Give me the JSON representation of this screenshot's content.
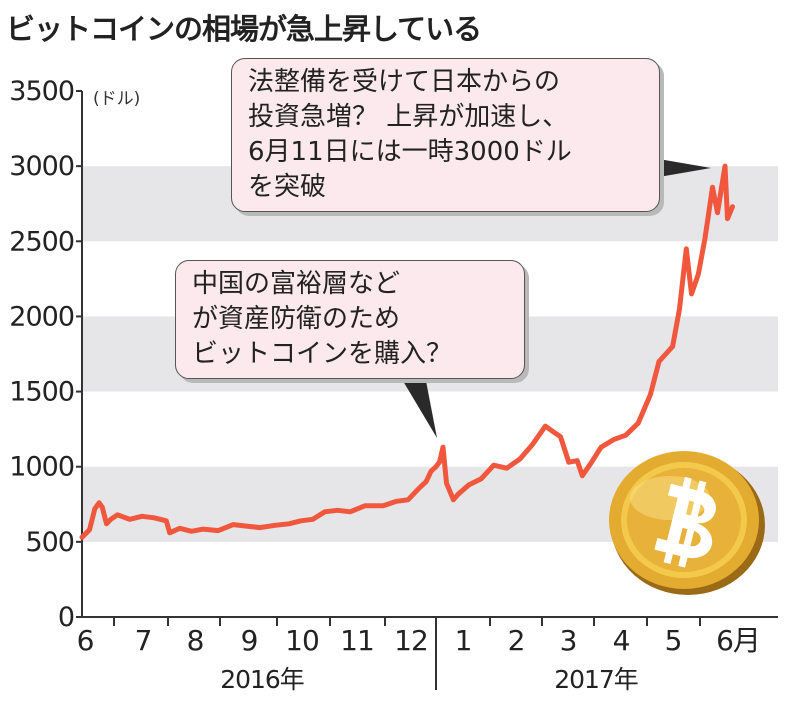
{
  "title": "ビットコインの相場が急上昇している",
  "callouts": [
    {
      "lines": [
        "法整備を受けて日本からの",
        "投資急増？ 上昇が加速し、",
        "6月11日には一時3000ドル",
        "を突破"
      ]
    },
    {
      "lines": [
        "中国の富裕層など",
        "が資産防衛のため",
        "ビットコインを購入？"
      ]
    }
  ],
  "icons": {
    "coin": "bitcoin-coin-icon"
  },
  "colors": {
    "line": "#f0573c",
    "band": "#e6e6e8",
    "axis": "#333333",
    "coin": "#e9b83a"
  },
  "chart_data": {
    "type": "line",
    "title": "ビットコインの相場が急上昇している",
    "unit": "(ドル)",
    "ylim": [
      0,
      3500
    ],
    "yticks": [
      0,
      500,
      1000,
      1500,
      2000,
      2500,
      3000,
      3500
    ],
    "grid": "alternating horizontal bands",
    "x_labels": [
      "6",
      "7",
      "8",
      "9",
      "10",
      "11",
      "12",
      "1",
      "2",
      "3",
      "4",
      "5",
      "6月"
    ],
    "year_labels": [
      "2016年",
      "2017年"
    ],
    "series": [
      {
        "points": [
          [
            "2016-06-01",
            530
          ],
          [
            "2016-06-08",
            580
          ],
          [
            "2016-06-13",
            720
          ],
          [
            "2016-06-17",
            760
          ],
          [
            "2016-06-20",
            730
          ],
          [
            "2016-06-24",
            620
          ],
          [
            "2016-06-28",
            650
          ],
          [
            "2016-07-03",
            680
          ],
          [
            "2016-07-10",
            650
          ],
          [
            "2016-07-17",
            670
          ],
          [
            "2016-07-24",
            660
          ],
          [
            "2016-07-31",
            640
          ],
          [
            "2016-08-02",
            560
          ],
          [
            "2016-08-08",
            590
          ],
          [
            "2016-08-15",
            570
          ],
          [
            "2016-08-22",
            585
          ],
          [
            "2016-08-31",
            575
          ],
          [
            "2016-09-08",
            615
          ],
          [
            "2016-09-15",
            605
          ],
          [
            "2016-09-22",
            595
          ],
          [
            "2016-09-30",
            610
          ],
          [
            "2016-10-08",
            620
          ],
          [
            "2016-10-15",
            640
          ],
          [
            "2016-10-22",
            650
          ],
          [
            "2016-10-29",
            700
          ],
          [
            "2016-11-05",
            710
          ],
          [
            "2016-11-12",
            700
          ],
          [
            "2016-11-20",
            740
          ],
          [
            "2016-11-30",
            740
          ],
          [
            "2016-12-08",
            770
          ],
          [
            "2016-12-15",
            780
          ],
          [
            "2016-12-22",
            860
          ],
          [
            "2016-12-26",
            900
          ],
          [
            "2016-12-29",
            970
          ],
          [
            "2017-01-01",
            1000
          ],
          [
            "2017-01-03",
            1030
          ],
          [
            "2017-01-05",
            1130
          ],
          [
            "2017-01-07",
            890
          ],
          [
            "2017-01-11",
            780
          ],
          [
            "2017-01-14",
            820
          ],
          [
            "2017-01-20",
            880
          ],
          [
            "2017-01-27",
            920
          ],
          [
            "2017-02-03",
            1010
          ],
          [
            "2017-02-10",
            990
          ],
          [
            "2017-02-17",
            1050
          ],
          [
            "2017-02-24",
            1150
          ],
          [
            "2017-03-03",
            1270
          ],
          [
            "2017-03-08",
            1230
          ],
          [
            "2017-03-12",
            1200
          ],
          [
            "2017-03-17",
            1030
          ],
          [
            "2017-03-22",
            1040
          ],
          [
            "2017-03-25",
            940
          ],
          [
            "2017-03-30",
            1020
          ],
          [
            "2017-04-05",
            1130
          ],
          [
            "2017-04-12",
            1180
          ],
          [
            "2017-04-19",
            1210
          ],
          [
            "2017-04-26",
            1290
          ],
          [
            "2017-05-03",
            1480
          ],
          [
            "2017-05-08",
            1700
          ],
          [
            "2017-05-12",
            1750
          ],
          [
            "2017-05-16",
            1800
          ],
          [
            "2017-05-20",
            2050
          ],
          [
            "2017-05-24",
            2450
          ],
          [
            "2017-05-27",
            2150
          ],
          [
            "2017-05-31",
            2280
          ],
          [
            "2017-06-03",
            2520
          ],
          [
            "2017-06-06",
            2860
          ],
          [
            "2017-06-08",
            2690
          ],
          [
            "2017-06-11",
            3000
          ],
          [
            "2017-06-12",
            2650
          ],
          [
            "2017-06-14",
            2730
          ]
        ]
      }
    ]
  }
}
